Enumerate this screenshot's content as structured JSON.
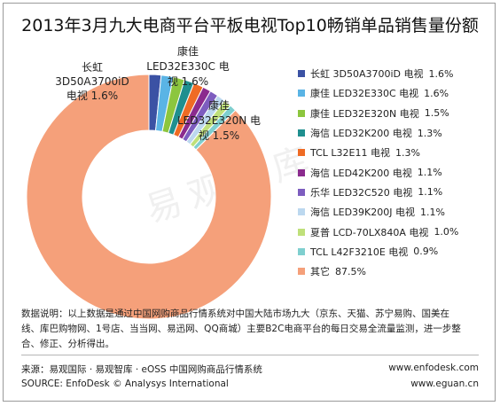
{
  "chart_data": {
    "type": "pie",
    "title": "2013年3月九大电商平台平板电视Top10畅销单品销售量份额",
    "donut": true,
    "categories": [
      "长虹 3D50A3700iD 电视",
      "康佳 LED32E330C 电视",
      "康佳 LED32E320N 电视",
      "海信 LED32K200 电视",
      "TCL L32E11 电视",
      "海信 LED42K200 电视",
      "乐华 LED32C520 电视",
      "海信 LED39K200J 电视",
      "夏普 LCD-70LX840A 电视",
      "TCL L42F3210E 电视",
      "其它"
    ],
    "values": [
      1.6,
      1.6,
      1.5,
      1.3,
      1.3,
      1.1,
      1.1,
      1.1,
      1.0,
      0.9,
      87.5
    ],
    "labels": [
      "1.6%",
      "1.6%",
      "1.5%",
      "1.3%",
      "1.3%",
      "1.1%",
      "1.1%",
      "1.1%",
      "1.0%",
      "0.9%",
      "87.5%"
    ],
    "colors": [
      "#3b52a4",
      "#5ab4e5",
      "#8cc63e",
      "#1f8f8f",
      "#ef6b24",
      "#8b2b8e",
      "#7d5dbf",
      "#bcd8ef",
      "#bfe07a",
      "#7fcfcf",
      "#f5a07a"
    ],
    "callouts": [
      {
        "lines": [
          "长虹",
          "3D50A3700iD",
          "电视  1.6%"
        ]
      },
      {
        "lines": [
          "康佳",
          "LED32E330C 电",
          "视  1.6%"
        ]
      },
      {
        "lines": [
          "康佳",
          "LED32E320N 电",
          "视  1.5%"
        ]
      }
    ],
    "legend_position": "right"
  },
  "watermark": "易观智库",
  "footnote": {
    "lines": [
      "数据说明：以上数据是通过中国网购商品行情系统对中国大陆市场九大（京东、天猫、苏宁易购、国美在",
      "线、库巴购物网、1号店、当当网、易迅网、QQ商城）主要B2C电商平台的每日交易全流量监测，进一步整",
      "合、修正、分析得出。"
    ]
  },
  "source": {
    "cn": "来源：易观国际 · 易观智库 · eOSS 中国网购商品行情系统",
    "en": "SOURCE: EnfoDesk © Analysys International",
    "web1": "www.enfodesk.com",
    "web2": "www.eguan.cn"
  }
}
